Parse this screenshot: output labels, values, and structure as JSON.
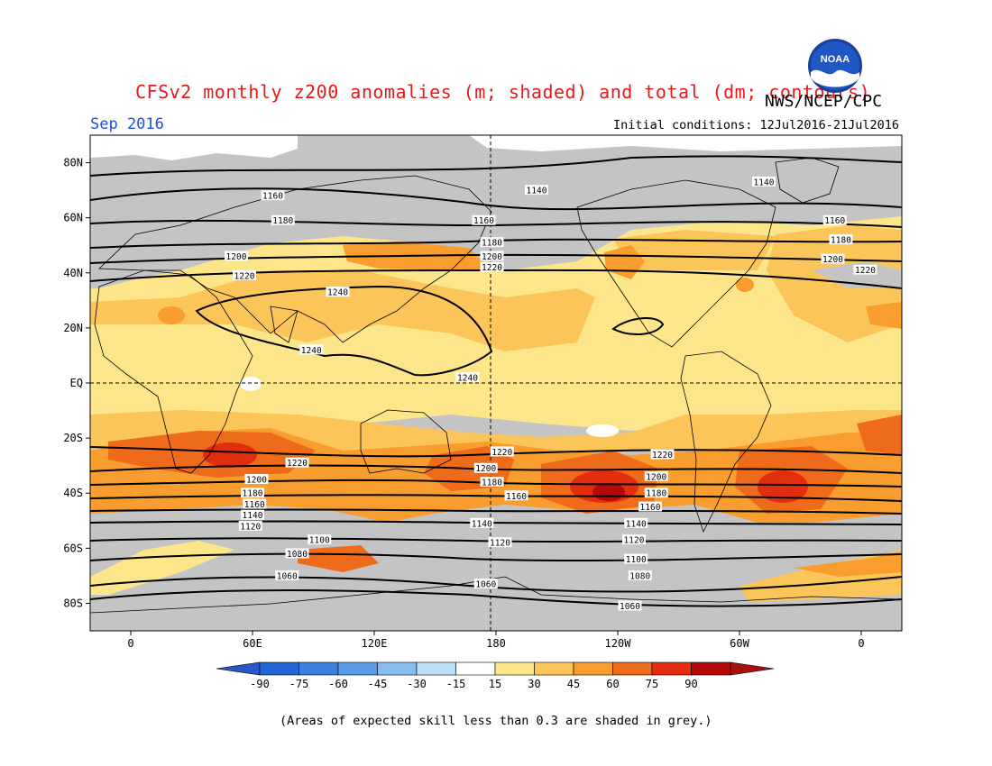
{
  "header": {
    "title": "CFSv2 monthly z200 anomalies (m; shaded) and total (dm; contours)",
    "month": "Sep 2016",
    "agency": "NWS/NCEP/CPC",
    "initial_conditions": "Initial conditions: 12Jul2016-21Jul2016",
    "logo_text": "NOAA"
  },
  "footnote": "(Areas of expected skill less than 0.3 are shaded in grey.)",
  "map": {
    "lon_range": [
      -20,
      380
    ],
    "lat_range": [
      -90,
      90
    ],
    "lat_ticks": [
      {
        "lat": 80,
        "label": "80N"
      },
      {
        "lat": 60,
        "label": "60N"
      },
      {
        "lat": 40,
        "label": "40N"
      },
      {
        "lat": 20,
        "label": "20N"
      },
      {
        "lat": 0,
        "label": "EQ"
      },
      {
        "lat": -20,
        "label": "20S"
      },
      {
        "lat": -40,
        "label": "40S"
      },
      {
        "lat": -60,
        "label": "60S"
      },
      {
        "lat": -80,
        "label": "80S"
      }
    ],
    "lon_ticks": [
      {
        "lon": 0,
        "label": "0"
      },
      {
        "lon": 60,
        "label": "60E"
      },
      {
        "lon": 120,
        "label": "120E"
      },
      {
        "lon": 180,
        "label": "180"
      },
      {
        "lon": 240,
        "label": "120W"
      },
      {
        "lon": 300,
        "label": "60W"
      },
      {
        "lon": 360,
        "label": "0"
      }
    ],
    "contour_labels": [
      {
        "value": "1160",
        "lon": 70,
        "lat": 68
      },
      {
        "value": "1180",
        "lon": 75,
        "lat": 59
      },
      {
        "value": "1140",
        "lon": 200,
        "lat": 70
      },
      {
        "value": "1140",
        "lon": 312,
        "lat": 73
      },
      {
        "value": "1160",
        "lon": 174,
        "lat": 59
      },
      {
        "value": "1160",
        "lon": 347,
        "lat": 59
      },
      {
        "value": "1180",
        "lon": 178,
        "lat": 51
      },
      {
        "value": "1180",
        "lon": 350,
        "lat": 52
      },
      {
        "value": "1200",
        "lon": 52,
        "lat": 46
      },
      {
        "value": "1200",
        "lon": 178,
        "lat": 46
      },
      {
        "value": "1200",
        "lon": 346,
        "lat": 45
      },
      {
        "value": "1220",
        "lon": 56,
        "lat": 39
      },
      {
        "value": "1220",
        "lon": 178,
        "lat": 42
      },
      {
        "value": "1220",
        "lon": 362,
        "lat": 41
      },
      {
        "value": "1240",
        "lon": 102,
        "lat": 33
      },
      {
        "value": "1240",
        "lon": 89,
        "lat": 12
      },
      {
        "value": "1240",
        "lon": 166,
        "lat": 2
      },
      {
        "value": "1220",
        "lon": 82,
        "lat": -29
      },
      {
        "value": "1220",
        "lon": 183,
        "lat": -25
      },
      {
        "value": "1220",
        "lon": 262,
        "lat": -26
      },
      {
        "value": "1200",
        "lon": 62,
        "lat": -35
      },
      {
        "value": "1200",
        "lon": 175,
        "lat": -31
      },
      {
        "value": "1200",
        "lon": 259,
        "lat": -34
      },
      {
        "value": "1180",
        "lon": 60,
        "lat": -40
      },
      {
        "value": "1180",
        "lon": 178,
        "lat": -36
      },
      {
        "value": "1180",
        "lon": 259,
        "lat": -40
      },
      {
        "value": "1160",
        "lon": 61,
        "lat": -44
      },
      {
        "value": "1160",
        "lon": 190,
        "lat": -41
      },
      {
        "value": "1160",
        "lon": 256,
        "lat": -45
      },
      {
        "value": "1140",
        "lon": 60,
        "lat": -48
      },
      {
        "value": "1140",
        "lon": 173,
        "lat": -51
      },
      {
        "value": "1140",
        "lon": 249,
        "lat": -51
      },
      {
        "value": "1120",
        "lon": 59,
        "lat": -52
      },
      {
        "value": "1120",
        "lon": 182,
        "lat": -58
      },
      {
        "value": "1120",
        "lon": 248,
        "lat": -57
      },
      {
        "value": "1100",
        "lon": 93,
        "lat": -57
      },
      {
        "value": "1100",
        "lon": 249,
        "lat": -64
      },
      {
        "value": "1080",
        "lon": 82,
        "lat": -62
      },
      {
        "value": "1080",
        "lon": 251,
        "lat": -70
      },
      {
        "value": "1060",
        "lon": 77,
        "lat": -70
      },
      {
        "value": "1060",
        "lon": 175,
        "lat": -73
      },
      {
        "value": "1060",
        "lon": 246,
        "lat": -81
      }
    ]
  },
  "colorbar": {
    "labels": [
      "-90",
      "-75",
      "-60",
      "-45",
      "-30",
      "-15",
      "15",
      "30",
      "45",
      "60",
      "75",
      "90"
    ],
    "colors": [
      "#2166d4",
      "#3a80e0",
      "#5a9be8",
      "#88bdf0",
      "#b9e0f7",
      "#ffffff",
      "#fde68a",
      "#fcc55a",
      "#f99d2e",
      "#ef6b1c",
      "#e32d0f",
      "#b50a0a"
    ],
    "low_color": "#2c56c8",
    "high_color": "#a80f0f"
  },
  "shading": {
    "grey": "#c4c4c4",
    "white": "#ffffff",
    "band_15_30": "#fde68a",
    "band_30_45": "#fcc55a",
    "band_45_60": "#f99d2e",
    "band_60_75": "#ef6b1c",
    "band_75_90": "#e32d0f",
    "band_90": "#b50a0a"
  }
}
